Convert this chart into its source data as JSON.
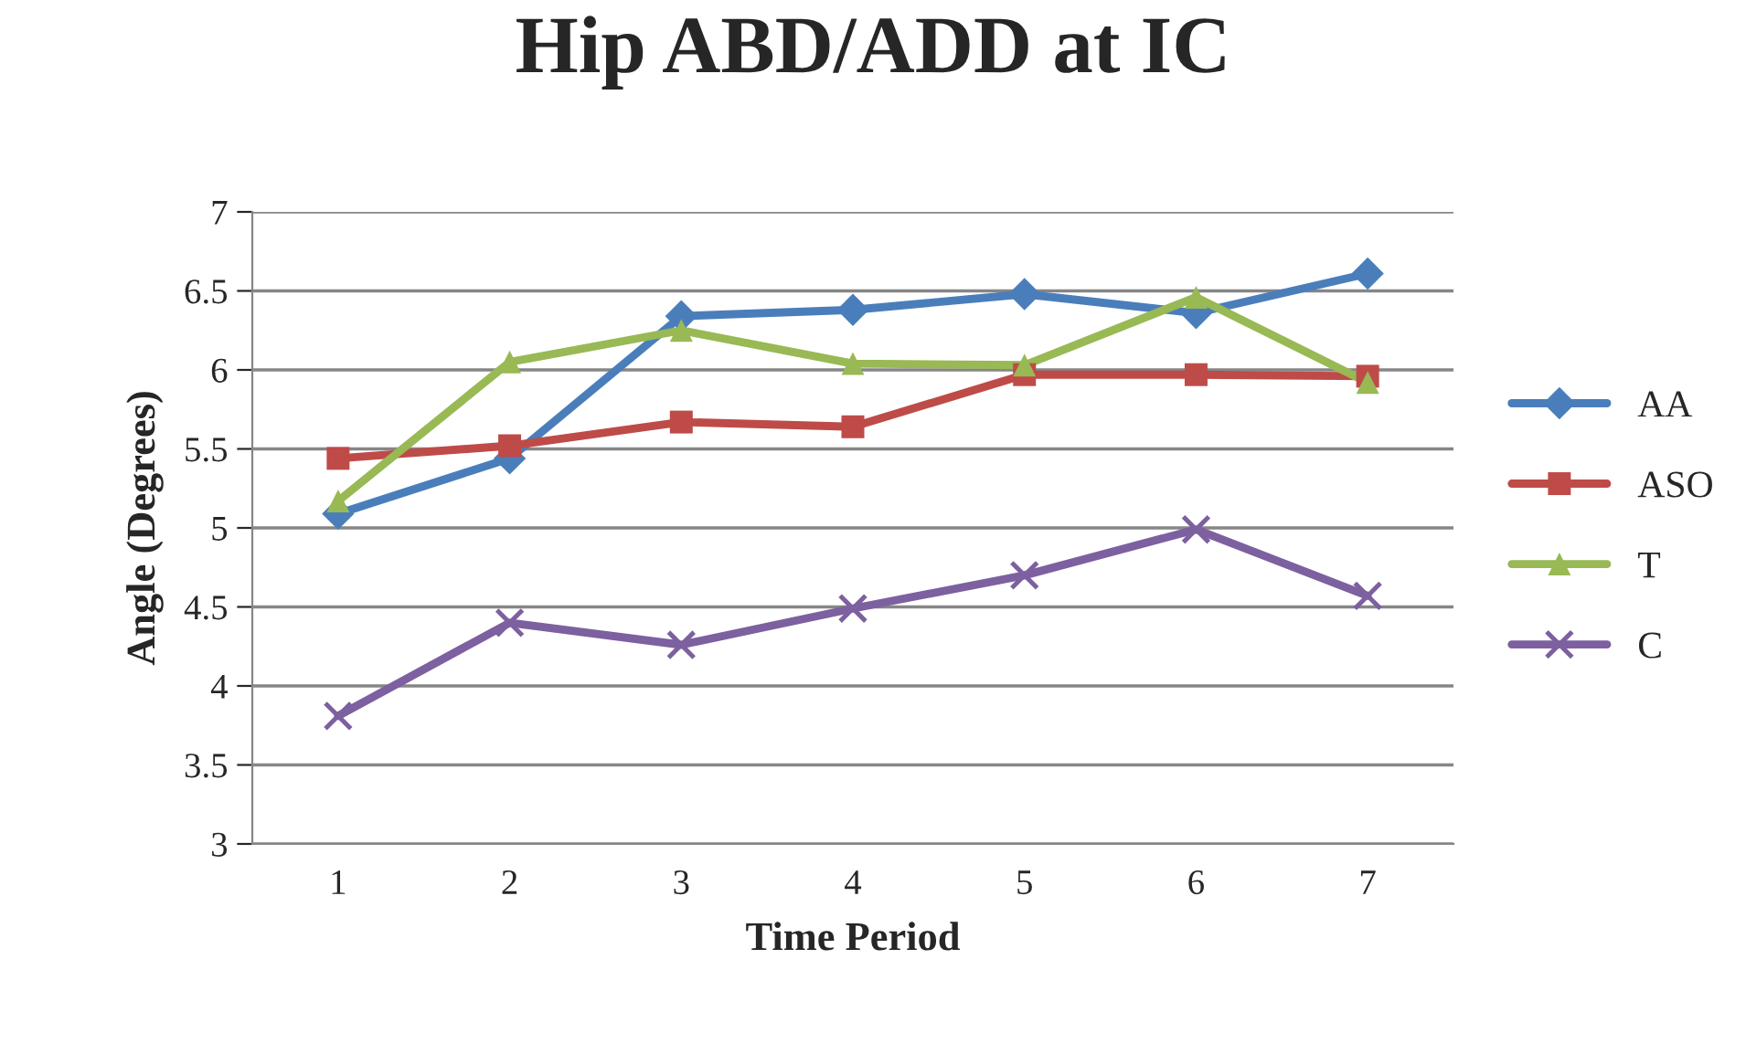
{
  "chart_data": {
    "type": "line",
    "title": "Hip ABD/ADD at IC",
    "xlabel": "Time Period",
    "ylabel": "Angle (Degrees)",
    "categories": [
      "1",
      "2",
      "3",
      "4",
      "5",
      "6",
      "7"
    ],
    "series": [
      {
        "name": "AA",
        "color": "#4a7ebb",
        "marker": "diamond",
        "values": [
          5.09,
          5.44,
          6.34,
          6.38,
          6.48,
          6.36,
          6.61
        ]
      },
      {
        "name": "ASO",
        "color": "#be4b48",
        "marker": "square",
        "values": [
          5.44,
          5.52,
          5.67,
          5.64,
          5.97,
          5.97,
          5.96
        ]
      },
      {
        "name": "T",
        "color": "#98b954",
        "marker": "triangle",
        "values": [
          5.17,
          6.05,
          6.25,
          6.04,
          6.03,
          6.46,
          5.92
        ]
      },
      {
        "name": "C",
        "color": "#7d60a0",
        "marker": "cross",
        "values": [
          3.81,
          4.4,
          4.26,
          4.49,
          4.7,
          4.99,
          4.57
        ]
      }
    ],
    "ylim": [
      3,
      7
    ],
    "yticks": [
      3,
      3.5,
      4,
      4.5,
      5,
      5.5,
      6,
      6.5,
      7
    ],
    "grid": "y",
    "legend": "right",
    "line_style": "solid"
  }
}
